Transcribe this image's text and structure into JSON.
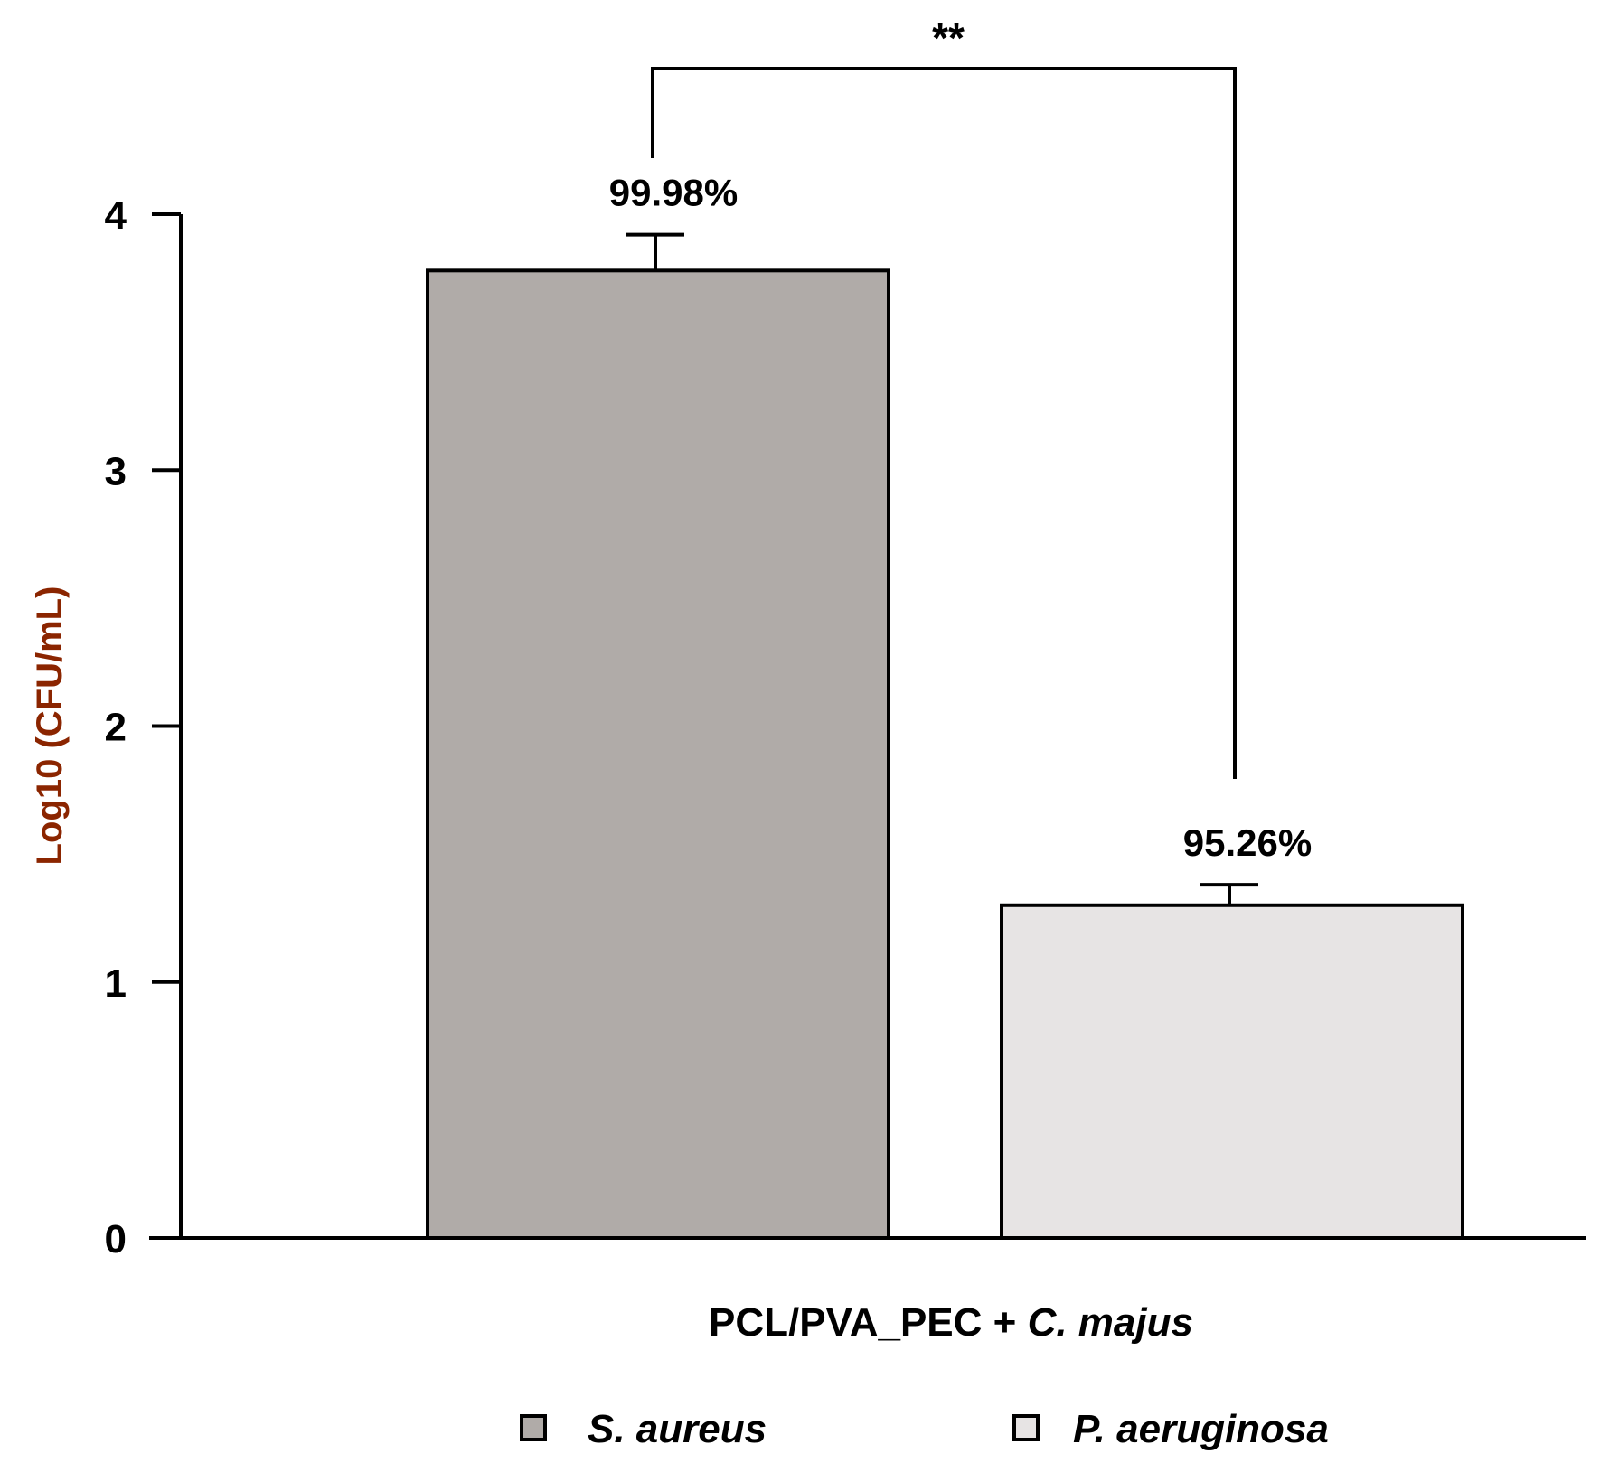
{
  "chart_data": {
    "type": "bar",
    "categories": [
      "S. aureus",
      "P. aeruginosa"
    ],
    "values": [
      3.78,
      1.3
    ],
    "errors": [
      0.14,
      0.08
    ],
    "bar_labels": [
      "99.98%",
      "95.26%"
    ],
    "colors": [
      "#b0aba8",
      "#e7e4e4"
    ],
    "xlabel": {
      "prefix": "PCL/PVA_PEC + ",
      "italic": "C. majus"
    },
    "ylabel": "Log10 (CFU/mL)",
    "ylabel_color": "#8b2500",
    "ylim": [
      0,
      4
    ],
    "yticks": [
      "0",
      "1",
      "2",
      "3",
      "4"
    ],
    "significance": {
      "label": "**",
      "between": [
        0,
        1
      ]
    },
    "legend": [
      "S. aureus",
      "P. aeruginosa"
    ],
    "legend_position": "bottom",
    "grid": false
  }
}
